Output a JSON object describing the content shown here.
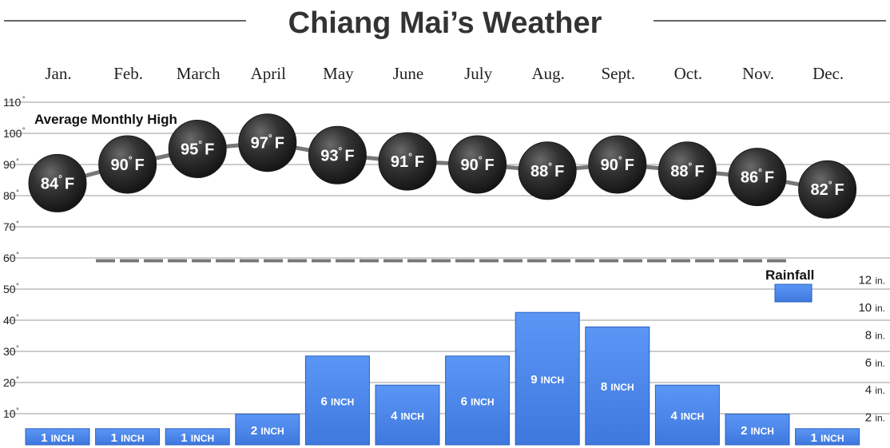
{
  "title": "Chiang Mai’s Weather",
  "chart_data": {
    "type": "bar",
    "months": [
      "Jan.",
      "Feb.",
      "March",
      "April",
      "May",
      "June",
      "July",
      "Aug.",
      "Sept.",
      "Oct.",
      "Nov.",
      "Dec."
    ],
    "temperature": {
      "name": "Average Monthly High",
      "type": "line",
      "values": [
        84,
        90,
        95,
        97,
        93,
        91,
        90,
        88,
        90,
        88,
        86,
        82
      ],
      "unit": "F",
      "degree_symbol": "°",
      "y_ticks": [
        10,
        20,
        30,
        40,
        50,
        60,
        70,
        80,
        90,
        100,
        110
      ],
      "ylim": [
        0,
        110
      ]
    },
    "rainfall": {
      "name": "Rainfall",
      "type": "bar",
      "values": [
        1,
        1,
        1,
        2,
        6,
        4,
        6,
        9,
        8,
        4,
        2,
        1
      ],
      "unit_label": "INCH",
      "y_ticks": [
        2,
        4,
        6,
        8,
        10,
        12
      ],
      "tick_unit": "in.",
      "ylim": [
        0,
        12
      ]
    },
    "colors": {
      "bar": "#4a86e8",
      "bar_edge": "#2a5fbf",
      "circle": "#2e2e2e",
      "line": "#777777",
      "grid": "#9a9a9a",
      "divider": "#777777"
    }
  }
}
